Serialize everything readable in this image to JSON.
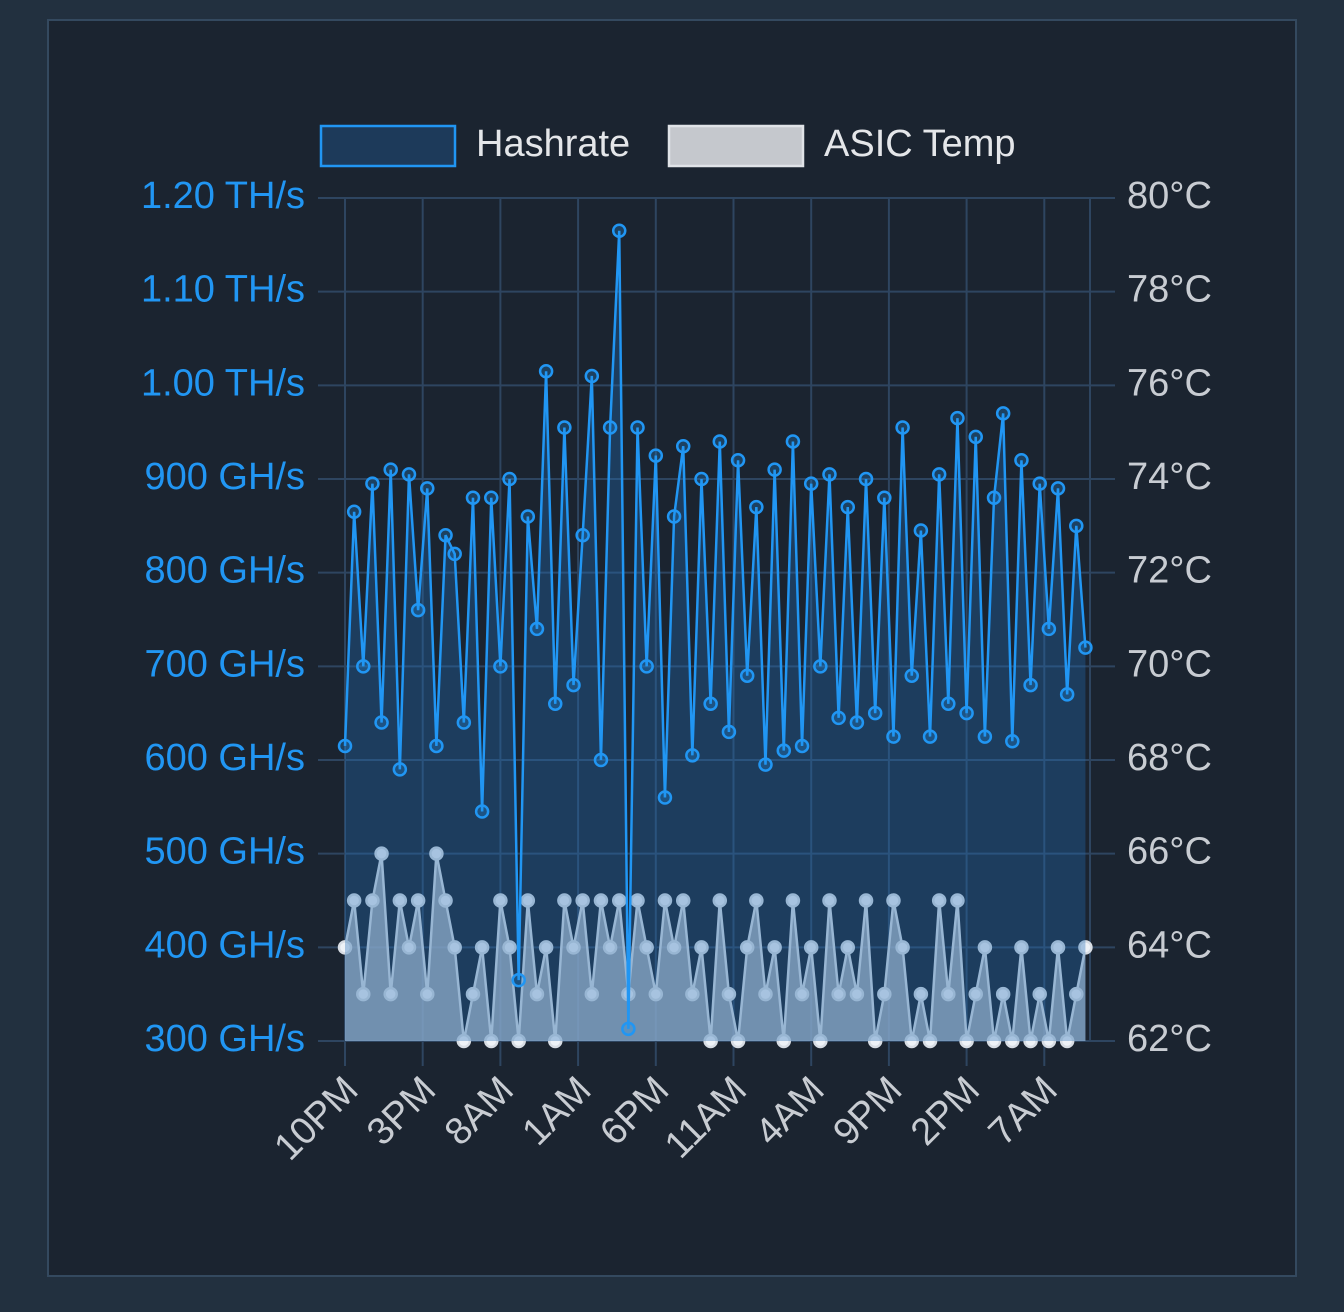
{
  "chart_data": {
    "type": "line",
    "legend": "top",
    "grid": true,
    "x": [
      0,
      2,
      4,
      6,
      8,
      10,
      12,
      14,
      16,
      18,
      20,
      22,
      24,
      26,
      28,
      30,
      32,
      34,
      36,
      38,
      40,
      42,
      44,
      46,
      48,
      50,
      52,
      54,
      56,
      58,
      60,
      62,
      64,
      66,
      68,
      70,
      72,
      74,
      76,
      78,
      80,
      82,
      84,
      86,
      88,
      90,
      92,
      94,
      96,
      98,
      100,
      102,
      104,
      106,
      108,
      110,
      112,
      114,
      116,
      118,
      120,
      122,
      124,
      126,
      128,
      130,
      132,
      134,
      136,
      138,
      140,
      142,
      144,
      146,
      148,
      150,
      152,
      154,
      156,
      158,
      160,
      162
    ],
    "xlim": [
      0,
      163
    ],
    "xticks": [
      {
        "value": 0,
        "label": "10PM"
      },
      {
        "value": 17,
        "label": "3PM"
      },
      {
        "value": 34,
        "label": "8AM"
      },
      {
        "value": 51,
        "label": "1AM"
      },
      {
        "value": 68,
        "label": "6PM"
      },
      {
        "value": 85,
        "label": "11AM"
      },
      {
        "value": 102,
        "label": "4AM"
      },
      {
        "value": 119,
        "label": "9PM"
      },
      {
        "value": 136,
        "label": "2PM"
      },
      {
        "value": 153,
        "label": "7AM"
      }
    ],
    "ylim": [
      300,
      1200
    ],
    "yticks": [
      {
        "value": 300,
        "label": "300 GH/s"
      },
      {
        "value": 400,
        "label": "400 GH/s"
      },
      {
        "value": 500,
        "label": "500 GH/s"
      },
      {
        "value": 600,
        "label": "600 GH/s"
      },
      {
        "value": 700,
        "label": "700 GH/s"
      },
      {
        "value": 800,
        "label": "800 GH/s"
      },
      {
        "value": 900,
        "label": "900 GH/s"
      },
      {
        "value": 1000,
        "label": "1.00 TH/s"
      },
      {
        "value": 1100,
        "label": "1.10 TH/s"
      },
      {
        "value": 1200,
        "label": "1.20 TH/s"
      }
    ],
    "y2lim": [
      62,
      80
    ],
    "y2ticks": [
      {
        "value": 62,
        "label": "62°C"
      },
      {
        "value": 64,
        "label": "64°C"
      },
      {
        "value": 66,
        "label": "66°C"
      },
      {
        "value": 68,
        "label": "68°C"
      },
      {
        "value": 70,
        "label": "70°C"
      },
      {
        "value": 72,
        "label": "72°C"
      },
      {
        "value": 74,
        "label": "74°C"
      },
      {
        "value": 76,
        "label": "76°C"
      },
      {
        "value": 78,
        "label": "78°C"
      },
      {
        "value": 80,
        "label": "80°C"
      }
    ],
    "series": [
      {
        "name": "Hashrate",
        "color": "#2196f3",
        "fill": "rgba(33,110,180,0.35)",
        "axis": "y",
        "values": [
          615,
          865,
          700,
          895,
          640,
          910,
          590,
          905,
          760,
          890,
          615,
          840,
          820,
          640,
          880,
          545,
          880,
          700,
          900,
          365,
          860,
          740,
          1015,
          660,
          955,
          680,
          840,
          1010,
          600,
          955,
          1165,
          313,
          955,
          700,
          925,
          560,
          860,
          935,
          605,
          900,
          660,
          940,
          630,
          920,
          690,
          870,
          595,
          910,
          610,
          940,
          615,
          895,
          700,
          905,
          645,
          870,
          640,
          900,
          650,
          880,
          625,
          955,
          690,
          845,
          625,
          905,
          660,
          965,
          650,
          945,
          625,
          880,
          970,
          620,
          920,
          680,
          895,
          740,
          890,
          670,
          850,
          720
        ]
      },
      {
        "name": "ASIC Temp",
        "color": "#d8dde4",
        "fill": "rgba(200,205,213,0.75)",
        "axis": "y2",
        "values": [
          64,
          65,
          63,
          65,
          66,
          63,
          65,
          64,
          65,
          63,
          66,
          65,
          64,
          62,
          63,
          64,
          62,
          65,
          64,
          62,
          65,
          63,
          64,
          62,
          65,
          64,
          65,
          63,
          65,
          64,
          65,
          63,
          65,
          64,
          63,
          65,
          64,
          65,
          63,
          64,
          62,
          65,
          63,
          62,
          64,
          65,
          63,
          64,
          62,
          65,
          63,
          64,
          62,
          65,
          63,
          64,
          63,
          65,
          62,
          63,
          65,
          64,
          62,
          63,
          62,
          65,
          63,
          65,
          62,
          63,
          64,
          62,
          63,
          62,
          64,
          62,
          63,
          62,
          64,
          62,
          63,
          64
        ]
      }
    ]
  }
}
